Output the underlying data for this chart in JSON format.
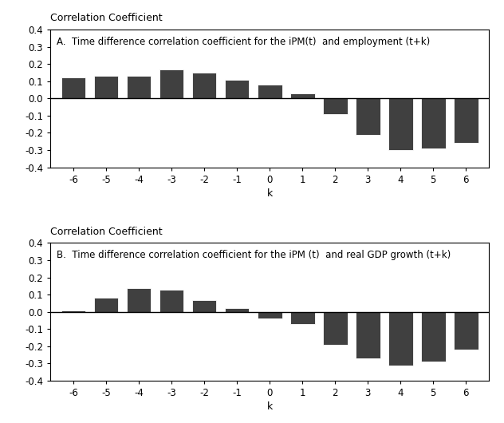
{
  "k_values": [
    -6,
    -5,
    -4,
    -3,
    -2,
    -1,
    0,
    1,
    2,
    3,
    4,
    5,
    6
  ],
  "chart_a_values": [
    0.12,
    0.13,
    0.13,
    0.17,
    0.15,
    0.11,
    0.08,
    0.03,
    -0.09,
    -0.21,
    -0.3,
    -0.29,
    -0.26
  ],
  "chart_b_values": [
    0.01,
    0.08,
    0.14,
    0.13,
    0.07,
    0.02,
    -0.04,
    -0.07,
    -0.19,
    -0.27,
    -0.31,
    -0.29,
    -0.22
  ],
  "bar_color": "#404040",
  "bar_edge_color": "#ffffff",
  "bar_width": 0.75,
  "ylim": [
    -0.4,
    0.4
  ],
  "yticks": [
    -0.4,
    -0.3,
    -0.2,
    -0.1,
    0.0,
    0.1,
    0.2,
    0.3,
    0.4
  ],
  "ylabel": "Correlation Coefficient",
  "xlabel": "k",
  "title_a": "A.  Time difference correlation coefficient for the iPM(t)  and employment (t+k)",
  "title_b": "B.  Time difference correlation coefficient for the iPM (t)  and real GDP growth (t+k)",
  "title_fontsize": 8.5,
  "ylabel_fontsize": 9,
  "xlabel_fontsize": 9,
  "tick_fontsize": 8.5,
  "background_color": "#ffffff"
}
